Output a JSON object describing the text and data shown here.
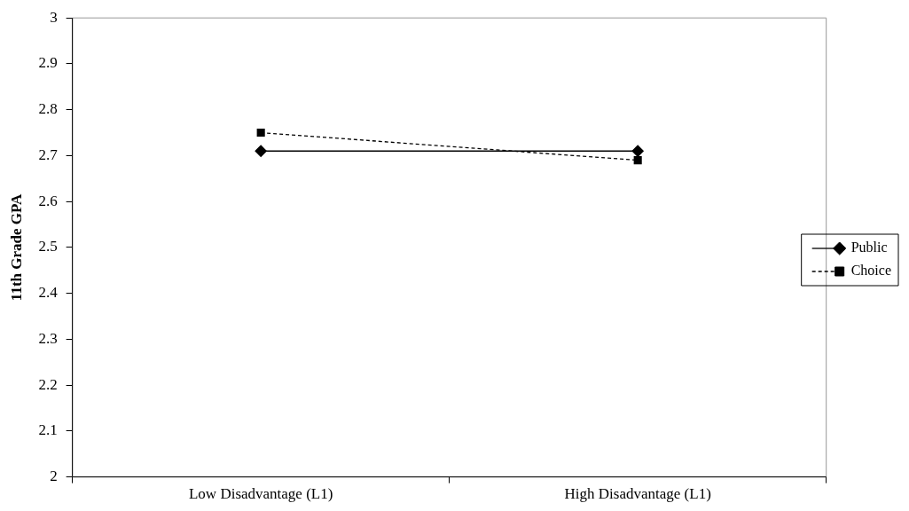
{
  "chart_data": {
    "type": "line",
    "ylabel": "11th Grade GPA",
    "categories": [
      "Low Disadvantage (L1)",
      "High Disadvantage (L1)"
    ],
    "series": [
      {
        "name": "Public",
        "color": "#000000",
        "values": [
          2.71,
          2.71
        ],
        "marker": "diamond",
        "line_style": "solid"
      },
      {
        "name": "Choice",
        "color": "#000000",
        "values": [
          2.75,
          2.69
        ],
        "marker": "square",
        "line_style": "dashed"
      }
    ],
    "ylim": [
      2,
      3
    ],
    "yticks": [
      2,
      2.1,
      2.2,
      2.3,
      2.4,
      2.5,
      2.6,
      2.7,
      2.8,
      2.9,
      3
    ],
    "grid": false,
    "legend": "right"
  }
}
